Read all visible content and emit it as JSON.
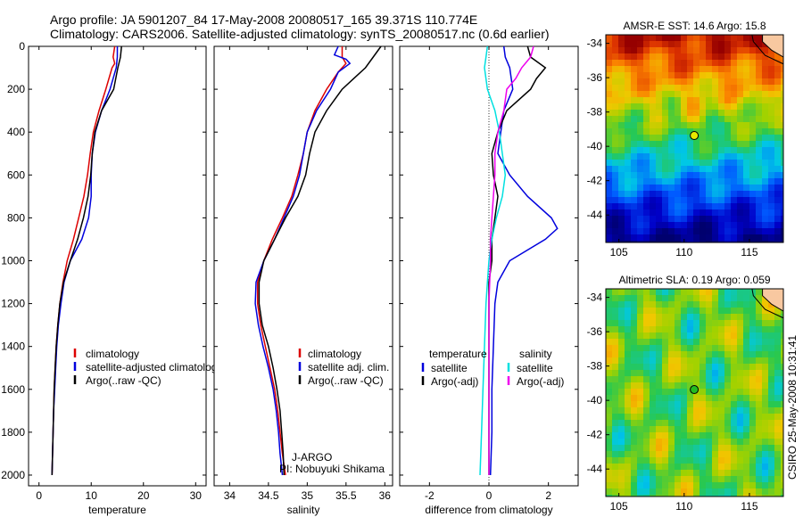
{
  "header": {
    "line1": "Argo profile: JA 5901207_84 17-May-2008 20080517_165 39.371S 110.774E",
    "line2": "Climatology: CARS2006. Satellite-adjusted climatology: synTS_20080517.nc (0.6d earlier)"
  },
  "footer": {
    "stamp": "CSIRO 25-May-2008 10:31:41"
  },
  "colors": {
    "climatology": "#dd0000",
    "satellite": "#0000dd",
    "argo": "#000000",
    "satellite_diff": "#00e0e0",
    "argo_diff": "#ee00ee"
  },
  "chart_data": [
    {
      "type": "line",
      "xlabel": "temperature",
      "xlim": [
        -2,
        32
      ],
      "ylim": [
        2050,
        0
      ],
      "xticks": [
        0,
        10,
        20,
        30
      ],
      "yticks": [
        0,
        200,
        400,
        600,
        800,
        1000,
        1200,
        1400,
        1600,
        1800,
        2000
      ],
      "legend": [
        "climatology",
        "satellite-adjusted climatology",
        "Argo(..raw -QC)"
      ],
      "series": [
        {
          "name": "climatology",
          "color": "#dd0000",
          "points": [
            [
              14.5,
              0
            ],
            [
              14.2,
              50
            ],
            [
              14.5,
              80
            ],
            [
              14.0,
              100
            ],
            [
              12.8,
              200
            ],
            [
              11.5,
              300
            ],
            [
              10.4,
              400
            ],
            [
              9.8,
              500
            ],
            [
              9.3,
              600
            ],
            [
              8.6,
              700
            ],
            [
              7.6,
              800
            ],
            [
              6.6,
              900
            ],
            [
              5.4,
              1000
            ],
            [
              4.6,
              1100
            ],
            [
              4.0,
              1200
            ],
            [
              3.6,
              1300
            ],
            [
              3.3,
              1400
            ],
            [
              3.1,
              1500
            ],
            [
              2.9,
              1600
            ],
            [
              2.8,
              1700
            ],
            [
              2.7,
              1800
            ],
            [
              2.6,
              1900
            ],
            [
              2.5,
              2000
            ]
          ]
        },
        {
          "name": "satellite-adjusted climatology",
          "color": "#0000dd",
          "points": [
            [
              15.0,
              0
            ],
            [
              15.0,
              50
            ],
            [
              14.8,
              100
            ],
            [
              13.6,
              200
            ],
            [
              12.0,
              300
            ],
            [
              10.8,
              400
            ],
            [
              10.2,
              500
            ],
            [
              10.0,
              600
            ],
            [
              10.0,
              700
            ],
            [
              9.5,
              800
            ],
            [
              8.2,
              900
            ],
            [
              6.0,
              1000
            ],
            [
              4.8,
              1100
            ],
            [
              4.2,
              1200
            ],
            [
              3.7,
              1300
            ],
            [
              3.4,
              1400
            ],
            [
              3.2,
              1500
            ],
            [
              3.0,
              1600
            ],
            [
              2.8,
              1700
            ],
            [
              2.7,
              1800
            ],
            [
              2.6,
              1900
            ],
            [
              2.5,
              2000
            ]
          ]
        },
        {
          "name": "Argo(..raw -QC)",
          "color": "#000000",
          "points": [
            [
              15.8,
              0
            ],
            [
              15.6,
              50
            ],
            [
              15.1,
              100
            ],
            [
              14.3,
              200
            ],
            [
              12.0,
              300
            ],
            [
              10.7,
              400
            ],
            [
              10.2,
              500
            ],
            [
              9.9,
              600
            ],
            [
              9.4,
              700
            ],
            [
              8.5,
              800
            ],
            [
              7.4,
              900
            ],
            [
              6.0,
              1000
            ],
            [
              4.7,
              1100
            ],
            [
              4.0,
              1200
            ],
            [
              3.6,
              1300
            ],
            [
              3.3,
              1400
            ],
            [
              3.1,
              1500
            ],
            [
              2.9,
              1600
            ],
            [
              2.8,
              1700
            ],
            [
              2.7,
              1800
            ],
            [
              2.6,
              1900
            ],
            [
              2.5,
              2000
            ]
          ]
        }
      ]
    },
    {
      "type": "line",
      "xlabel": "salinity",
      "xlim": [
        33.8,
        36.1
      ],
      "ylim": [
        2050,
        0
      ],
      "xticks": [
        34,
        34.5,
        35,
        35.5,
        36
      ],
      "legend": [
        "climatology",
        "satellite adj. clim.",
        "Argo(..raw -QC)"
      ],
      "annotation": [
        "J-ARGO",
        "PI: Nobuyuki Shikama"
      ],
      "series": [
        {
          "name": "climatology",
          "color": "#dd0000",
          "points": [
            [
              35.45,
              0
            ],
            [
              35.45,
              50
            ],
            [
              35.5,
              80
            ],
            [
              35.4,
              120
            ],
            [
              35.25,
              200
            ],
            [
              35.1,
              300
            ],
            [
              35.0,
              400
            ],
            [
              34.95,
              500
            ],
            [
              34.88,
              600
            ],
            [
              34.8,
              700
            ],
            [
              34.68,
              800
            ],
            [
              34.55,
              900
            ],
            [
              34.44,
              1000
            ],
            [
              34.36,
              1100
            ],
            [
              34.36,
              1200
            ],
            [
              34.4,
              1300
            ],
            [
              34.46,
              1400
            ],
            [
              34.52,
              1500
            ],
            [
              34.58,
              1600
            ],
            [
              34.62,
              1700
            ],
            [
              34.65,
              1800
            ],
            [
              34.68,
              1900
            ],
            [
              34.72,
              2000
            ]
          ]
        },
        {
          "name": "satellite adj. clim.",
          "color": "#0000dd",
          "points": [
            [
              35.4,
              0
            ],
            [
              35.35,
              40
            ],
            [
              35.5,
              60
            ],
            [
              35.55,
              80
            ],
            [
              35.4,
              120
            ],
            [
              35.3,
              200
            ],
            [
              35.12,
              300
            ],
            [
              35.0,
              400
            ],
            [
              34.95,
              500
            ],
            [
              34.9,
              600
            ],
            [
              34.82,
              700
            ],
            [
              34.7,
              800
            ],
            [
              34.58,
              900
            ],
            [
              34.44,
              1000
            ],
            [
              34.34,
              1100
            ],
            [
              34.33,
              1200
            ],
            [
              34.37,
              1300
            ],
            [
              34.43,
              1400
            ],
            [
              34.5,
              1500
            ],
            [
              34.56,
              1600
            ],
            [
              34.6,
              1700
            ],
            [
              34.63,
              1800
            ],
            [
              34.65,
              1900
            ],
            [
              34.68,
              2000
            ]
          ]
        },
        {
          "name": "Argo(..raw -QC)",
          "color": "#000000",
          "points": [
            [
              35.95,
              0
            ],
            [
              35.85,
              50
            ],
            [
              35.75,
              100
            ],
            [
              35.6,
              150
            ],
            [
              35.45,
              200
            ],
            [
              35.25,
              300
            ],
            [
              35.1,
              400
            ],
            [
              35.03,
              500
            ],
            [
              34.98,
              600
            ],
            [
              34.88,
              700
            ],
            [
              34.72,
              800
            ],
            [
              34.58,
              900
            ],
            [
              34.44,
              1000
            ],
            [
              34.38,
              1100
            ],
            [
              34.38,
              1200
            ],
            [
              34.42,
              1300
            ],
            [
              34.5,
              1400
            ],
            [
              34.56,
              1500
            ],
            [
              34.61,
              1600
            ],
            [
              34.65,
              1700
            ],
            [
              34.67,
              1800
            ],
            [
              34.69,
              1900
            ],
            [
              34.7,
              2000
            ]
          ]
        }
      ]
    },
    {
      "type": "line",
      "xlabel": "difference from climatology",
      "xlim": [
        -3,
        3
      ],
      "ylim": [
        2050,
        0
      ],
      "xticks": [
        -2,
        0,
        2
      ],
      "legend_groups": [
        {
          "title": "temperature",
          "items": [
            "satellite",
            "Argo(-adj)"
          ]
        },
        {
          "title": "salinity",
          "items": [
            "satellite",
            "Argo(-adj)"
          ]
        }
      ],
      "series": [
        {
          "name": "temperature satellite",
          "color": "#0000dd",
          "points": [
            [
              0.5,
              0
            ],
            [
              0.55,
              50
            ],
            [
              0.7,
              100
            ],
            [
              0.8,
              200
            ],
            [
              0.5,
              300
            ],
            [
              0.4,
              400
            ],
            [
              0.3,
              500
            ],
            [
              0.7,
              600
            ],
            [
              1.3,
              700
            ],
            [
              2.1,
              800
            ],
            [
              2.3,
              850
            ],
            [
              1.9,
              900
            ],
            [
              0.7,
              1000
            ],
            [
              0.3,
              1100
            ],
            [
              0.2,
              1200
            ],
            [
              0.15,
              1400
            ],
            [
              0.1,
              1600
            ],
            [
              0.1,
              1800
            ],
            [
              0.05,
              2000
            ]
          ]
        },
        {
          "name": "temperature Argo(-adj)",
          "color": "#000000",
          "points": [
            [
              1.3,
              0
            ],
            [
              1.4,
              50
            ],
            [
              1.9,
              100
            ],
            [
              1.6,
              150
            ],
            [
              1.4,
              200
            ],
            [
              0.6,
              300
            ],
            [
              0.3,
              400
            ],
            [
              0.1,
              500
            ],
            [
              0.15,
              600
            ],
            [
              0.3,
              700
            ],
            [
              0.2,
              800
            ],
            [
              0.1,
              900
            ],
            [
              0.1,
              1000
            ],
            [
              0.0,
              1100
            ],
            [
              0.0,
              1200
            ],
            [
              0.0,
              1400
            ],
            [
              0.0,
              1600
            ],
            [
              0.0,
              1800
            ],
            [
              0.0,
              2000
            ]
          ]
        },
        {
          "name": "salinity satellite",
          "color": "#00e0e0",
          "points": [
            [
              -0.05,
              0
            ],
            [
              -0.1,
              50
            ],
            [
              -0.15,
              100
            ],
            [
              -0.05,
              200
            ],
            [
              0.2,
              300
            ],
            [
              0.35,
              400
            ],
            [
              0.45,
              500
            ],
            [
              0.55,
              600
            ],
            [
              0.45,
              700
            ],
            [
              0.25,
              800
            ],
            [
              0.1,
              900
            ],
            [
              0.0,
              1000
            ],
            [
              -0.05,
              1100
            ],
            [
              -0.1,
              1200
            ],
            [
              -0.15,
              1400
            ],
            [
              -0.2,
              1600
            ],
            [
              -0.25,
              1800
            ],
            [
              -0.3,
              2000
            ]
          ]
        },
        {
          "name": "salinity Argo(-adj)",
          "color": "#ee00ee",
          "points": [
            [
              1.5,
              0
            ],
            [
              1.4,
              50
            ],
            [
              1.1,
              100
            ],
            [
              0.9,
              150
            ],
            [
              0.6,
              200
            ],
            [
              0.5,
              300
            ],
            [
              0.3,
              400
            ],
            [
              0.2,
              500
            ],
            [
              0.2,
              600
            ],
            [
              0.15,
              700
            ],
            [
              0.1,
              800
            ],
            [
              0.05,
              900
            ],
            [
              0.05,
              1000
            ],
            [
              0.0,
              1200
            ],
            [
              0.0,
              1400
            ],
            [
              0.0,
              1600
            ],
            [
              0.0,
              1800
            ],
            [
              0.0,
              2000
            ]
          ]
        }
      ]
    },
    {
      "type": "heatmap",
      "title": "AMSR-E SST: 14.6 Argo: 15.8",
      "xlim": [
        104,
        117.6
      ],
      "ylim": [
        -45.6,
        -33.5
      ],
      "xticks": [
        105,
        110,
        115
      ],
      "yticks": [
        -34,
        -36,
        -38,
        -40,
        -42,
        -44
      ],
      "marker": {
        "lon": 110.774,
        "lat": -39.371
      }
    },
    {
      "type": "heatmap",
      "title": "Altimetric SLA: 0.19 Argo: 0.059",
      "xlim": [
        104,
        117.6
      ],
      "ylim": [
        -45.6,
        -33.5
      ],
      "xticks": [
        105,
        110,
        115
      ],
      "yticks": [
        -34,
        -36,
        -38,
        -40,
        -42,
        -44
      ],
      "marker": {
        "lon": 110.774,
        "lat": -39.371
      }
    }
  ]
}
